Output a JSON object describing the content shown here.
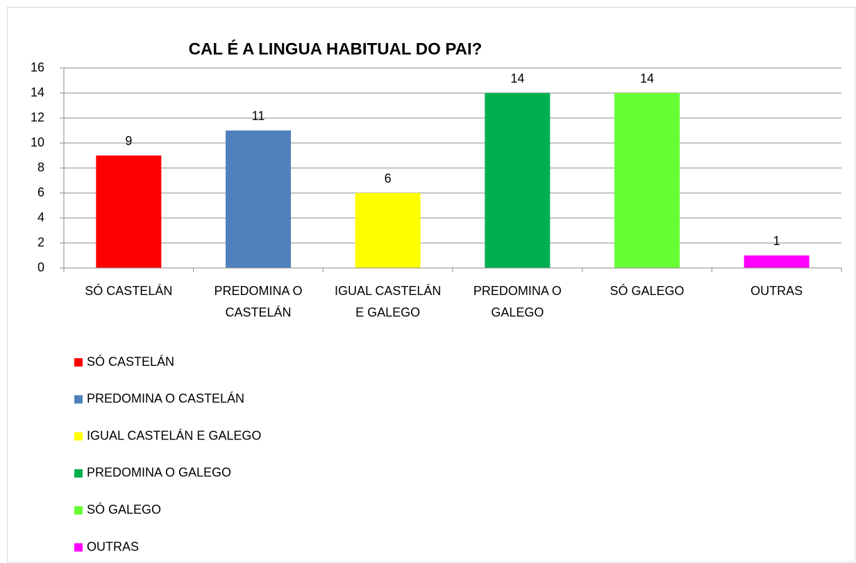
{
  "chart_data": {
    "type": "bar",
    "title": "CAL É A LINGUA HABITUAL DO PAI?",
    "categories": [
      "SÓ CASTELÁN",
      "PREDOMINA O CASTELÁN",
      "IGUAL CASTELÁN E GALEGO",
      "PREDOMINA O GALEGO",
      "SÓ GALEGO",
      "OUTRAS"
    ],
    "values": [
      9,
      11,
      6,
      14,
      14,
      1
    ],
    "colors": [
      "#ff0000",
      "#4f81bd",
      "#ffff00",
      "#00b050",
      "#66ff33",
      "#ff00ff"
    ],
    "ylim": [
      0,
      16
    ],
    "yticks": [
      0,
      2,
      4,
      6,
      8,
      10,
      12,
      14,
      16
    ],
    "grid": true,
    "legend": "bottom"
  }
}
